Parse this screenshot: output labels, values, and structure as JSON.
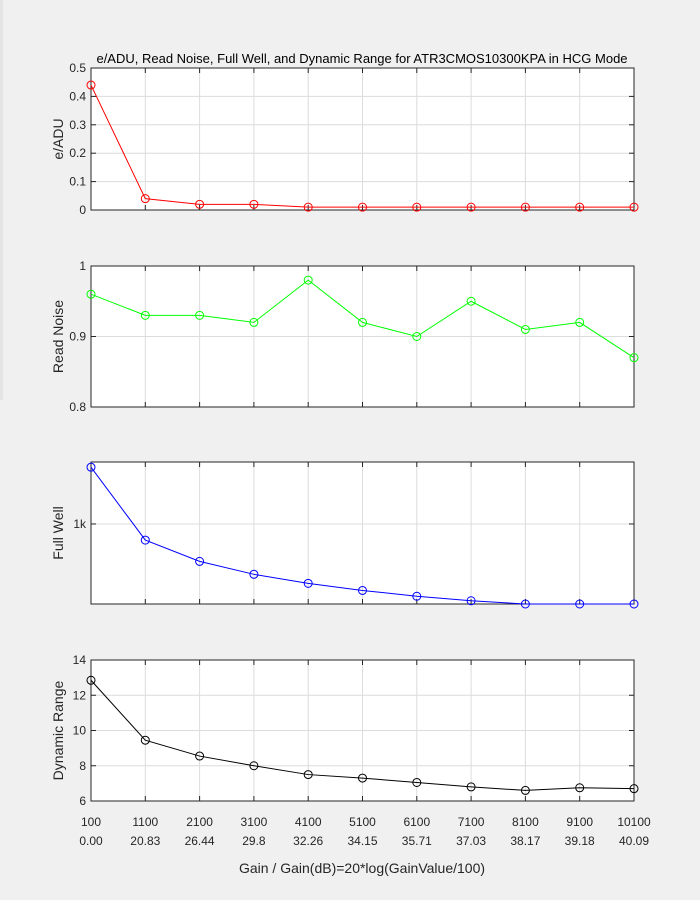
{
  "title": "e/ADU, Read Noise, Full Well, and Dynamic Range for ATR3CMOS10300KPA in HCG Mode",
  "xlabel": "Gain / Gain(dB)=20*log(GainValue/100)",
  "x_ticks": {
    "gain": [
      "100",
      "1100",
      "2100",
      "3100",
      "4100",
      "5100",
      "6100",
      "7100",
      "8100",
      "9100",
      "10100"
    ],
    "gain_db": [
      "0.00",
      "20.83",
      "26.44",
      "29.8",
      "32.26",
      "34.15",
      "35.71",
      "37.03",
      "38.17",
      "39.18",
      "40.09"
    ]
  },
  "colors": {
    "e_adu": "#ff0000",
    "read_noise": "#00ff00",
    "full_well": "#0000ff",
    "dynamic_range": "#000000",
    "axes": "#262626",
    "grid": "#dcdcdc",
    "figure_bg": "#f0f0f0"
  },
  "chart_data": [
    {
      "type": "line",
      "ylabel": "e/ADU",
      "x": [
        100,
        1100,
        2100,
        3100,
        4100,
        5100,
        6100,
        7100,
        8100,
        9100,
        10100
      ],
      "values": [
        0.44,
        0.04,
        0.02,
        0.02,
        0.01,
        0.01,
        0.01,
        0.01,
        0.01,
        0.01,
        0.01
      ],
      "ylim": [
        0,
        0.5
      ],
      "y_ticks": [
        0,
        0.1,
        0.2,
        0.3,
        0.4,
        0.5
      ],
      "y_tick_labels": [
        "0",
        "0.1",
        "0.2",
        "0.3",
        "0.4",
        "0.5"
      ],
      "color": "#ff0000",
      "marker": "circle",
      "grid": true
    },
    {
      "type": "line",
      "ylabel": "Read Noise",
      "x": [
        100,
        1100,
        2100,
        3100,
        4100,
        5100,
        6100,
        7100,
        8100,
        9100,
        10100
      ],
      "values": [
        0.96,
        0.93,
        0.93,
        0.92,
        0.98,
        0.92,
        0.9,
        0.95,
        0.91,
        0.92,
        0.87
      ],
      "ylim": [
        0.8,
        1.0
      ],
      "y_ticks": [
        0.8,
        0.9,
        1.0
      ],
      "y_tick_labels": [
        "0.8",
        "0.9",
        "1"
      ],
      "color": "#00ff00",
      "marker": "circle",
      "grid": true
    },
    {
      "type": "line",
      "ylabel": "Full Well",
      "x": [
        100,
        1100,
        2100,
        3100,
        4100,
        5100,
        6100,
        7100,
        8100,
        9100,
        10100
      ],
      "values": [
        1440,
        875,
        710,
        610,
        540,
        485,
        440,
        405,
        380,
        380,
        380
      ],
      "ylim": [
        380,
        1480
      ],
      "y_ticks": [
        1000
      ],
      "y_tick_labels": [
        "1k"
      ],
      "color": "#0000ff",
      "marker": "circle",
      "grid": true
    },
    {
      "type": "line",
      "ylabel": "Dynamic Range",
      "x": [
        100,
        1100,
        2100,
        3100,
        4100,
        5100,
        6100,
        7100,
        8100,
        9100,
        10100
      ],
      "values": [
        12.85,
        9.45,
        8.55,
        8.0,
        7.5,
        7.3,
        7.05,
        6.8,
        6.6,
        6.75,
        6.7
      ],
      "ylim": [
        6,
        14
      ],
      "y_ticks": [
        6,
        8,
        10,
        12,
        14
      ],
      "y_tick_labels": [
        "6",
        "8",
        "10",
        "12",
        "14"
      ],
      "color": "#000000",
      "marker": "circle",
      "grid": true
    }
  ]
}
